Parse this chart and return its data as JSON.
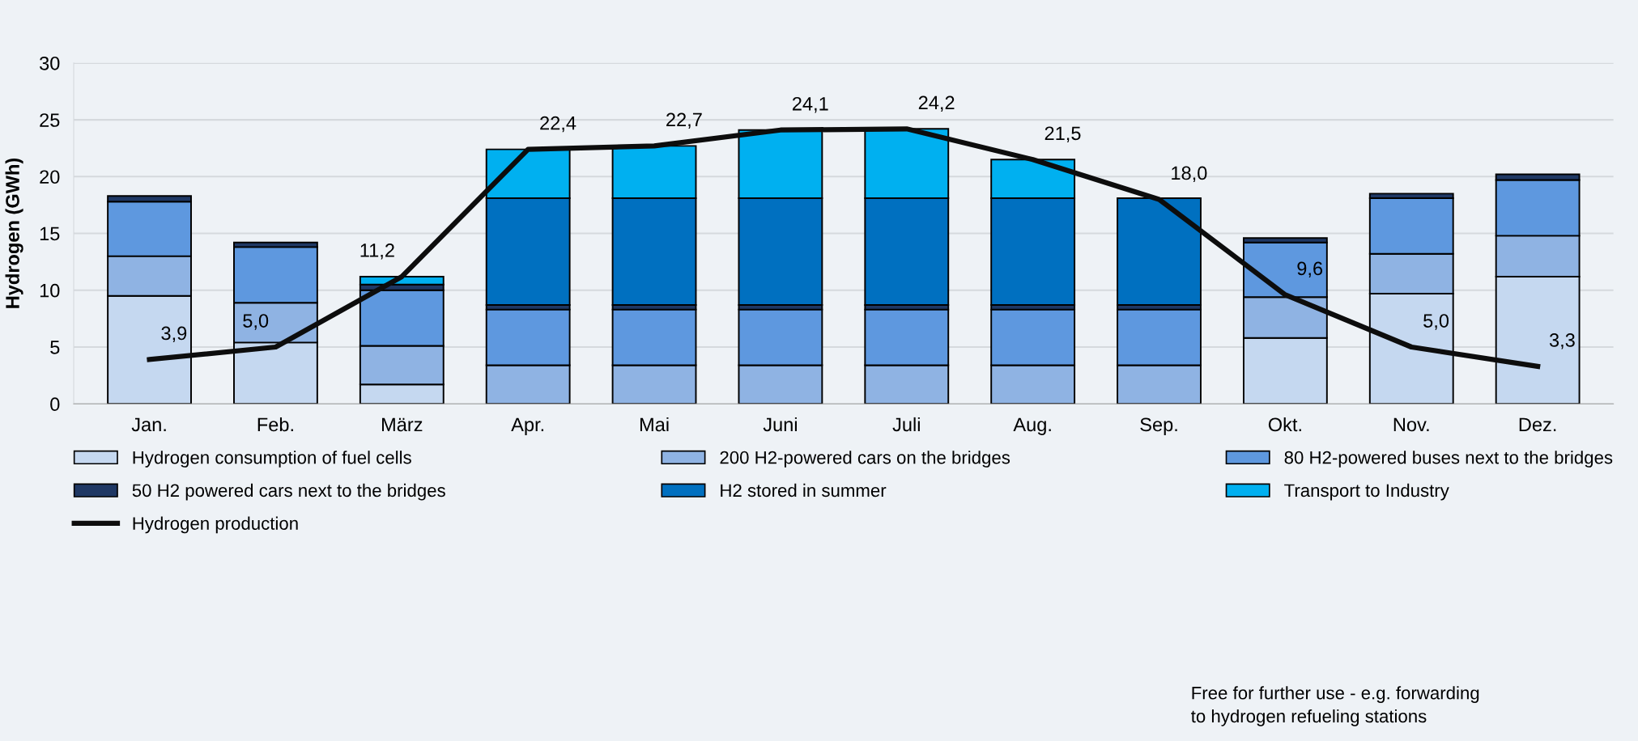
{
  "chart_data": {
    "type": "bar",
    "stacked": true,
    "ylabel": "Hydrogen (GWh)",
    "categories": [
      "Jan.",
      "Feb.",
      "März",
      "Apr.",
      "Mai",
      "Juni",
      "Juli",
      "Aug.",
      "Sep.",
      "Okt.",
      "Nov.",
      "Dez."
    ],
    "series": [
      {
        "name": "Hydrogen consumption of fuel cells",
        "color": "#c5d8f0",
        "values": [
          9.5,
          5.4,
          1.7,
          null,
          null,
          null,
          null,
          null,
          null,
          5.8,
          9.7,
          11.2
        ]
      },
      {
        "name": "200 H2-powered cars on the bridges",
        "color": "#8fb3e3",
        "values": [
          3.5,
          3.5,
          3.4,
          3.4,
          3.4,
          3.4,
          3.4,
          3.4,
          3.4,
          3.6,
          3.5,
          3.6
        ]
      },
      {
        "name": "80 H2-powered buses next to the bridges",
        "color": "#5e98df",
        "values": [
          4.8,
          4.9,
          4.9,
          4.9,
          4.9,
          4.9,
          4.9,
          4.9,
          4.9,
          4.8,
          4.9,
          4.9
        ]
      },
      {
        "name": "50 H2 powered cars next to the bridges",
        "color": "#1f3864",
        "values": [
          0.5,
          0.4,
          0.5,
          0.4,
          0.4,
          0.4,
          0.4,
          0.4,
          0.4,
          0.4,
          0.4,
          0.5
        ]
      },
      {
        "name": "H2 stored in summer",
        "color": "#0070c0",
        "values": [
          null,
          null,
          null,
          9.4,
          9.4,
          9.4,
          9.4,
          9.4,
          9.4,
          null,
          null,
          null
        ]
      },
      {
        "name": "Transport to Industry",
        "color": "#00b0f0",
        "values": [
          null,
          null,
          0.7,
          4.3,
          4.6,
          6.0,
          6.1,
          3.4,
          null,
          null,
          null,
          null
        ]
      },
      {
        "name": "Hydrogen production",
        "type": "line",
        "color": "#0d0d0d",
        "values": [
          3.9,
          5.0,
          11.2,
          22.4,
          22.7,
          24.1,
          24.2,
          21.5,
          18.0,
          9.6,
          5.0,
          3.3
        ],
        "value_labels": [
          "3,9",
          "5,0",
          "11,2",
          "22,4",
          "22,7",
          "24,1",
          "24,2",
          "21,5",
          "18,0",
          "9,6",
          "5,0",
          "3,3"
        ]
      }
    ],
    "ylim": [
      0,
      30
    ],
    "yticks": [
      0,
      5,
      10,
      15,
      20,
      25,
      30
    ],
    "grid": "y",
    "legend": "bottom",
    "marker": "none",
    "line_style": "solid",
    "annotations": [
      "Free for further use - e.g. forwarding\nto hydrogen refueling stations"
    ]
  }
}
